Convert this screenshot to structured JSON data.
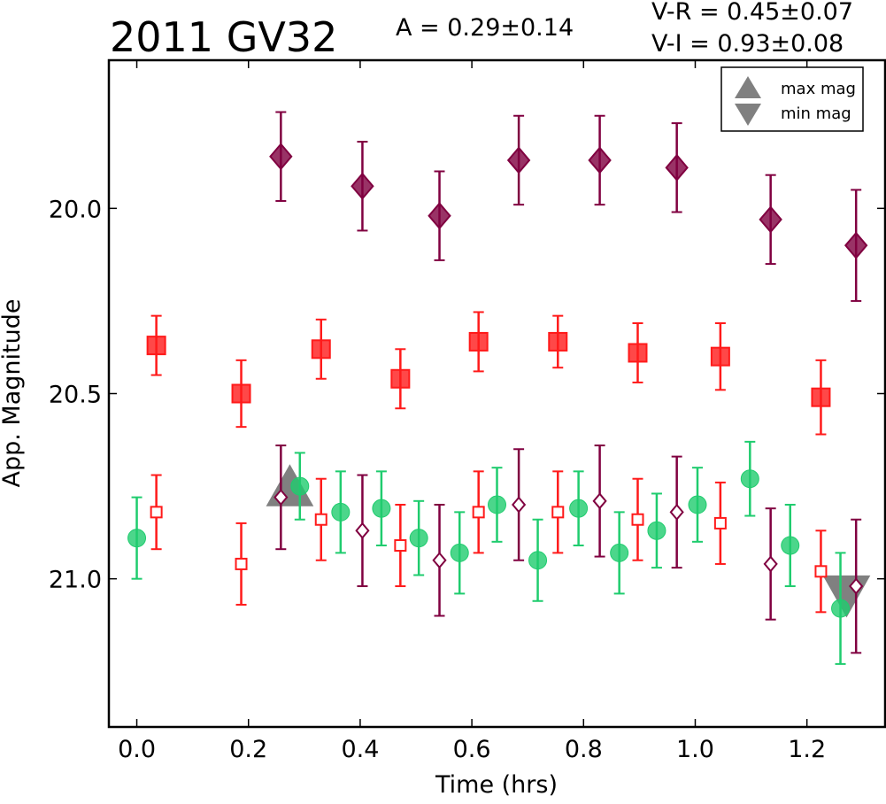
{
  "chart_data": {
    "type": "scatter",
    "title": "2011 GV32",
    "amplitude_label": "A  = 0.29±0.14",
    "color_labels": [
      "V-R = 0.45±0.07",
      "V-I  = 0.93±0.08"
    ],
    "xlabel": "Time (hrs)",
    "ylabel": "App. Magnitude",
    "xlim": [
      -0.05,
      1.34
    ],
    "ylim": [
      21.4,
      19.6
    ],
    "y_inverted": true,
    "grid": false,
    "legend_position": "top-right",
    "x_ticks": [
      "0.0",
      "0.2",
      "0.4",
      "0.6",
      "0.8",
      "1.0",
      "1.2"
    ],
    "y_ticks": [
      "20.0",
      "20.5",
      "21.0"
    ],
    "legend": [
      {
        "marker": "triangle-up",
        "label": "max mag"
      },
      {
        "marker": "triangle-down",
        "label": "min mag"
      }
    ],
    "colors": {
      "I": "#800040",
      "R": "#ff1a1a",
      "V": "#1fcc6e",
      "extrema": "#808080"
    },
    "series": [
      {
        "band": "I",
        "marker": "diamond",
        "filled": true,
        "points": [
          {
            "x": 0.258,
            "y": 19.86,
            "err": 0.12
          },
          {
            "x": 0.404,
            "y": 19.94,
            "err": 0.12
          },
          {
            "x": 0.542,
            "y": 20.02,
            "err": 0.12
          },
          {
            "x": 0.684,
            "y": 19.87,
            "err": 0.12
          },
          {
            "x": 0.829,
            "y": 19.87,
            "err": 0.12
          },
          {
            "x": 0.967,
            "y": 19.89,
            "err": 0.12
          },
          {
            "x": 1.135,
            "y": 20.03,
            "err": 0.12
          },
          {
            "x": 1.288,
            "y": 20.1,
            "err": 0.15
          }
        ]
      },
      {
        "band": "I",
        "marker": "diamond",
        "filled": false,
        "points": [
          {
            "x": 0.258,
            "y": 20.78,
            "err": 0.14
          },
          {
            "x": 0.404,
            "y": 20.87,
            "err": 0.15
          },
          {
            "x": 0.542,
            "y": 20.95,
            "err": 0.15
          },
          {
            "x": 0.684,
            "y": 20.8,
            "err": 0.15
          },
          {
            "x": 0.829,
            "y": 20.79,
            "err": 0.15
          },
          {
            "x": 0.967,
            "y": 20.82,
            "err": 0.15
          },
          {
            "x": 1.135,
            "y": 20.96,
            "err": 0.15
          },
          {
            "x": 1.288,
            "y": 21.02,
            "err": 0.18
          }
        ]
      },
      {
        "band": "R",
        "marker": "square",
        "filled": true,
        "points": [
          {
            "x": 0.035,
            "y": 20.37,
            "err": 0.08
          },
          {
            "x": 0.187,
            "y": 20.5,
            "err": 0.09
          },
          {
            "x": 0.33,
            "y": 20.38,
            "err": 0.08
          },
          {
            "x": 0.472,
            "y": 20.46,
            "err": 0.08
          },
          {
            "x": 0.612,
            "y": 20.36,
            "err": 0.08
          },
          {
            "x": 0.754,
            "y": 20.36,
            "err": 0.07
          },
          {
            "x": 0.897,
            "y": 20.39,
            "err": 0.08
          },
          {
            "x": 1.045,
            "y": 20.4,
            "err": 0.09
          },
          {
            "x": 1.225,
            "y": 20.51,
            "err": 0.1
          }
        ]
      },
      {
        "band": "R",
        "marker": "square",
        "filled": false,
        "points": [
          {
            "x": 0.035,
            "y": 20.82,
            "err": 0.1
          },
          {
            "x": 0.187,
            "y": 20.96,
            "err": 0.11
          },
          {
            "x": 0.33,
            "y": 20.84,
            "err": 0.11
          },
          {
            "x": 0.472,
            "y": 20.91,
            "err": 0.11
          },
          {
            "x": 0.612,
            "y": 20.82,
            "err": 0.11
          },
          {
            "x": 0.754,
            "y": 20.82,
            "err": 0.11
          },
          {
            "x": 0.897,
            "y": 20.84,
            "err": 0.11
          },
          {
            "x": 1.045,
            "y": 20.85,
            "err": 0.11
          },
          {
            "x": 1.225,
            "y": 20.98,
            "err": 0.11
          }
        ]
      },
      {
        "band": "V",
        "marker": "circle",
        "filled": true,
        "points": [
          {
            "x": 0.0,
            "y": 20.89,
            "err": 0.11
          },
          {
            "x": 0.292,
            "y": 20.75,
            "err": 0.09
          },
          {
            "x": 0.365,
            "y": 20.82,
            "err": 0.11
          },
          {
            "x": 0.438,
            "y": 20.81,
            "err": 0.1
          },
          {
            "x": 0.505,
            "y": 20.89,
            "err": 0.1
          },
          {
            "x": 0.578,
            "y": 20.93,
            "err": 0.11
          },
          {
            "x": 0.645,
            "y": 20.8,
            "err": 0.1
          },
          {
            "x": 0.718,
            "y": 20.95,
            "err": 0.11
          },
          {
            "x": 0.791,
            "y": 20.81,
            "err": 0.1
          },
          {
            "x": 0.864,
            "y": 20.93,
            "err": 0.11
          },
          {
            "x": 0.931,
            "y": 20.87,
            "err": 0.1
          },
          {
            "x": 1.004,
            "y": 20.8,
            "err": 0.1
          },
          {
            "x": 1.098,
            "y": 20.73,
            "err": 0.1
          },
          {
            "x": 1.17,
            "y": 20.91,
            "err": 0.11
          },
          {
            "x": 1.26,
            "y": 21.08,
            "err": 0.15
          }
        ]
      }
    ],
    "extrema": [
      {
        "type": "max",
        "x": 0.274,
        "y": 20.76
      },
      {
        "type": "min",
        "x": 1.271,
        "y": 21.04
      }
    ]
  }
}
